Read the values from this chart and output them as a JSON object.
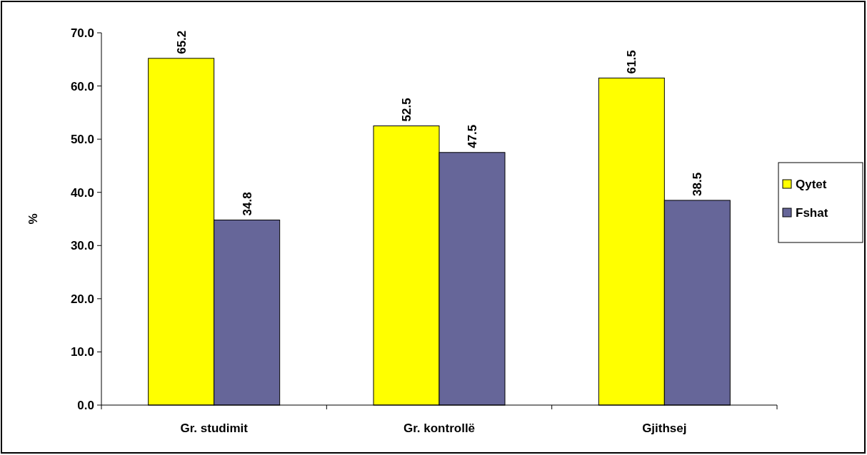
{
  "chart_data": {
    "type": "bar",
    "ylabel": "%",
    "categories": [
      "Gr. studimit",
      "Gr. kontrollë",
      "Gjithsej"
    ],
    "series": [
      {
        "name": "Qytet",
        "color": "#ffff00",
        "values": [
          65.2,
          52.5,
          61.5
        ]
      },
      {
        "name": "Fshat",
        "color": "#666699",
        "values": [
          34.8,
          47.5,
          38.5
        ]
      }
    ],
    "ylim": [
      0,
      70
    ],
    "yticks": [
      {
        "value": 0,
        "label": "0.0"
      },
      {
        "value": 10,
        "label": "10.0"
      },
      {
        "value": 20,
        "label": "20.0"
      },
      {
        "value": 30,
        "label": "30.0"
      },
      {
        "value": 40,
        "label": "40.0"
      },
      {
        "value": 50,
        "label": "50.0"
      },
      {
        "value": 60,
        "label": "60.0"
      },
      {
        "value": 70,
        "label": "70.0"
      }
    ],
    "data_labels": true,
    "legend": "right",
    "grid": false
  }
}
